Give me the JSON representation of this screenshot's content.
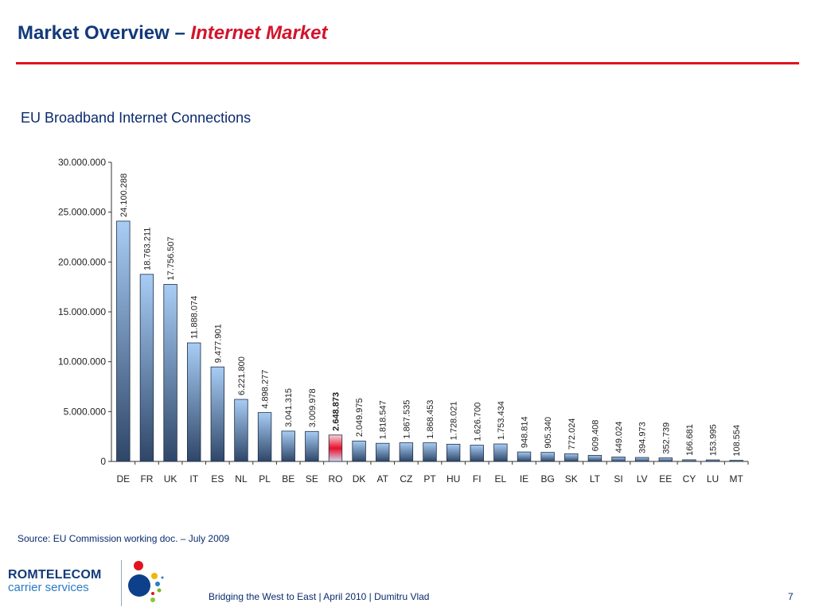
{
  "slide": {
    "title_main": "Market Overview – ",
    "title_accent": "Internet Market",
    "subtitle": "EU Broadband Internet Connections",
    "source": "Source: EU Commission working doc. – July 2009",
    "footer": "Bridging the West to East | April 2010 | Dumitru Vlad",
    "page_number": "7",
    "logo_name": "ROMTELECOM",
    "logo_sub": "carrier services"
  },
  "colors": {
    "title": "#123a7a",
    "accent": "#d2142c",
    "rule": "#e0141e",
    "bar_top": "#a8cdf5",
    "bar_bottom": "#2e4668",
    "highlight": "#e8102a"
  },
  "chart_data": {
    "type": "bar",
    "title": "",
    "xlabel": "",
    "ylabel": "",
    "ylim": [
      0,
      30000000
    ],
    "yticks": [
      0,
      5000000,
      10000000,
      15000000,
      20000000,
      25000000,
      30000000
    ],
    "ytick_labels": [
      "0",
      "5.000.000",
      "10.000.000",
      "15.000.000",
      "20.000.000",
      "25.000.000",
      "30.000.000"
    ],
    "categories": [
      "DE",
      "FR",
      "UK",
      "IT",
      "ES",
      "NL",
      "PL",
      "BE",
      "SE",
      "RO",
      "DK",
      "AT",
      "CZ",
      "PT",
      "HU",
      "FI",
      "EL",
      "IE",
      "BG",
      "SK",
      "LT",
      "SI",
      "LV",
      "EE",
      "CY",
      "LU",
      "MT"
    ],
    "values": [
      24100288,
      18763211,
      17756507,
      11888074,
      9477901,
      6221800,
      4898277,
      3041315,
      3009978,
      2648873,
      2049975,
      1818547,
      1867535,
      1868453,
      1728021,
      1626700,
      1753434,
      948814,
      905340,
      772024,
      609408,
      449024,
      394973,
      352739,
      166681,
      153995,
      108554
    ],
    "value_labels": [
      "24.100.288",
      "18.763.211",
      "17.756.507",
      "11.888.074",
      "9.477.901",
      "6.221.800",
      "4.898.277",
      "3.041.315",
      "3.009.978",
      "2.648.873",
      "2.049.975",
      "1.818.547",
      "1.867.535",
      "1.868.453",
      "1.728.021",
      "1.626.700",
      "1.753.434",
      "948.814",
      "905.340",
      "772.024",
      "609.408",
      "449.024",
      "394.973",
      "352.739",
      "166.681",
      "153.995",
      "108.554"
    ],
    "highlight": "RO",
    "grid": false,
    "legend": "none"
  }
}
